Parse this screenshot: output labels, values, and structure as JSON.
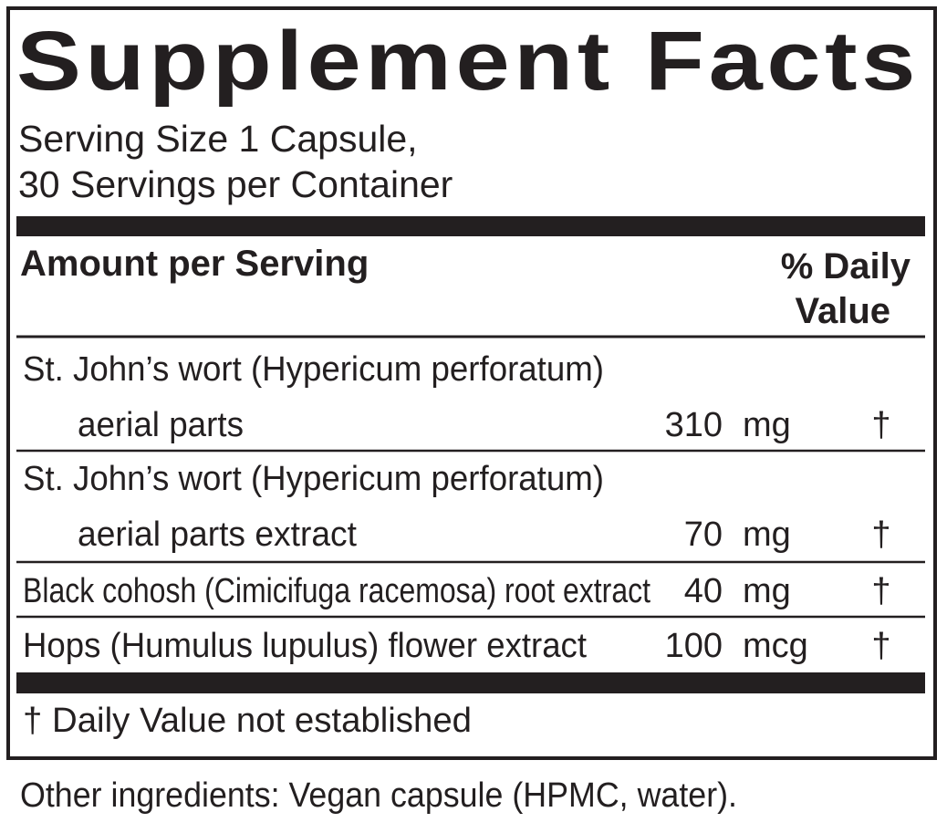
{
  "header": {
    "title": "Supplement Facts",
    "serving_lines": [
      "Serving Size 1 Capsule,",
      "30 Servings per Container"
    ]
  },
  "table": {
    "column_headers": {
      "amount": "Amount per Serving",
      "daily_value": [
        "% Daily",
        "Value"
      ]
    },
    "rows": [
      {
        "name": [
          "St. John’s wort (Hypericum perforatum)",
          "aerial parts"
        ],
        "amount": 310,
        "unit": "mg",
        "daily_value": "†"
      },
      {
        "name": [
          "St. John’s wort (Hypericum perforatum)",
          "aerial parts extract"
        ],
        "amount": 70,
        "unit": "mg",
        "daily_value": "†"
      },
      {
        "name": [
          "Black cohosh (Cimicifuga racemosa) root extract"
        ],
        "amount": 40,
        "unit": "mg",
        "daily_value": "†"
      },
      {
        "name": [
          "Hops (Humulus lupulus) flower extract"
        ],
        "amount": 100,
        "unit": "mcg",
        "daily_value": "†"
      }
    ],
    "footnote": "†  Daily Value not established"
  },
  "other_ingredients": "Other ingredients: Vegan capsule (HPMC, water)."
}
